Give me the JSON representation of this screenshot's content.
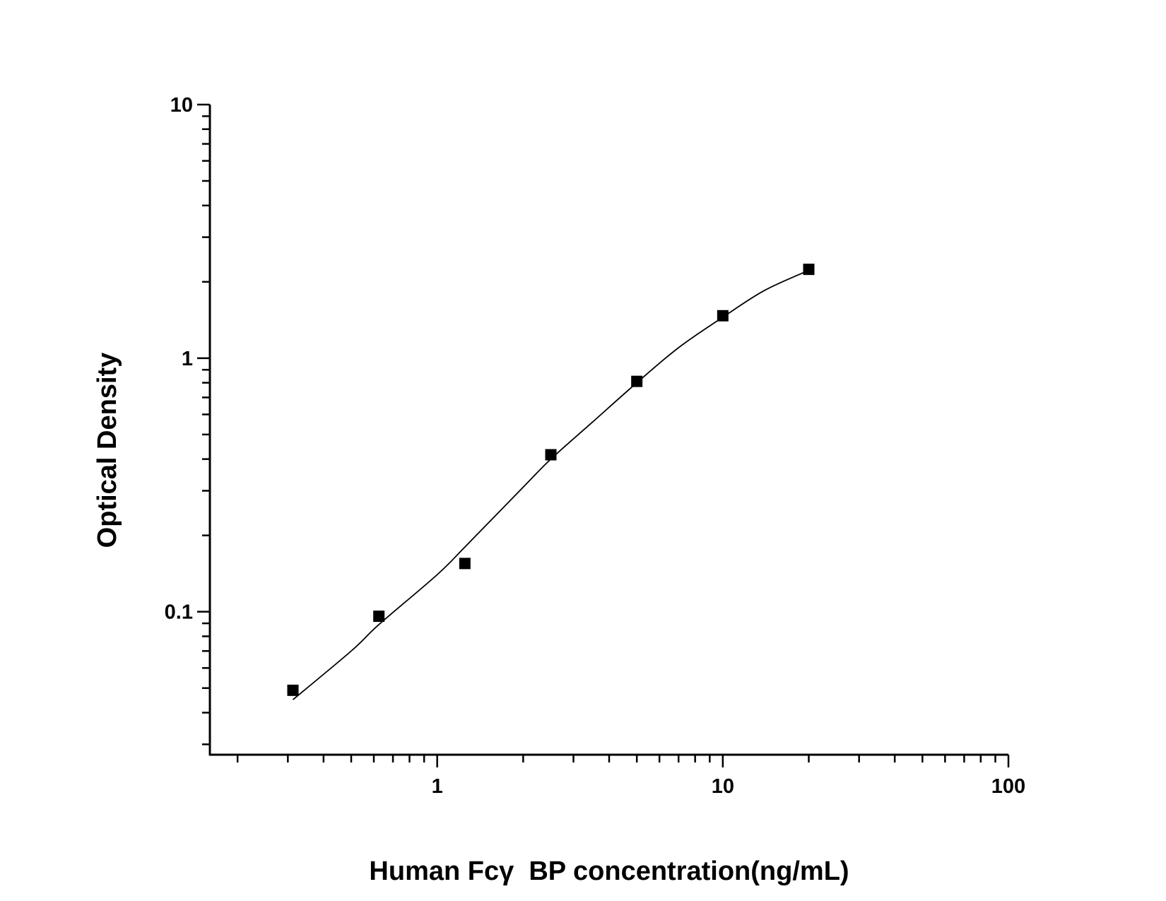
{
  "chart_data": {
    "type": "scatter",
    "xlabel": "Human Fcγ  BP concentration(ng/mL)",
    "ylabel": "Optical Density",
    "xscale": "log",
    "yscale": "log",
    "xlim": [
      0.16,
      100
    ],
    "ylim": [
      0.0273,
      10
    ],
    "grid": false,
    "x_tick_labels": [
      "1",
      "10",
      "100"
    ],
    "y_tick_labels": [
      "0.1",
      "1",
      "10"
    ],
    "series": [
      {
        "kind": "points",
        "marker": "square",
        "x": [
          0.3125,
          0.625,
          1.25,
          2.5,
          5,
          10,
          20
        ],
        "y": [
          0.049,
          0.096,
          0.155,
          0.416,
          0.81,
          1.47,
          2.24
        ]
      },
      {
        "kind": "fit-curve",
        "x": [
          0.3125,
          0.5,
          0.625,
          1,
          1.25,
          2,
          2.5,
          3.5,
          5,
          7,
          10,
          14,
          20
        ],
        "y": [
          0.045,
          0.07,
          0.089,
          0.14,
          0.18,
          0.31,
          0.4,
          0.56,
          0.8,
          1.1,
          1.45,
          1.85,
          2.22
        ]
      }
    ],
    "colors": {
      "marks": "#000000",
      "background": "#ffffff"
    }
  }
}
